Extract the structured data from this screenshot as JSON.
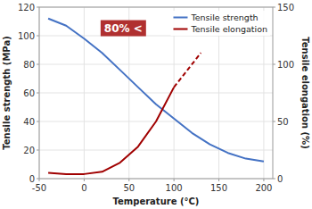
{
  "chart_data": {
    "type": "line",
    "xlabel": "Temperature (°C)",
    "ylabel": "Tensile strength (MPa)",
    "y2label": "Tensile elongation (%)",
    "xlim": [
      -50,
      210
    ],
    "xticks": [
      -50,
      0,
      50,
      100,
      150,
      200
    ],
    "ylim": [
      0,
      120
    ],
    "yticks": [
      0,
      20,
      40,
      60,
      80,
      100,
      120
    ],
    "y2lim": [
      0,
      150
    ],
    "y2ticks": [
      0,
      50,
      100,
      150
    ],
    "grid": true,
    "legend": "upper right",
    "annotations": [
      {
        "text": "80% <"
      }
    ],
    "series": [
      {
        "name": "Tensile strength",
        "color": "#4472c4",
        "x": [
          -40,
          -20,
          0,
          20,
          40,
          60,
          80,
          100,
          120,
          140,
          160,
          180,
          200
        ],
        "values": [
          112,
          107,
          98,
          88,
          76,
          64,
          52,
          42,
          32,
          24,
          18,
          14,
          12
        ]
      },
      {
        "name": "Tensile elongation",
        "color": "#a00000",
        "axis": "y2",
        "x": [
          -40,
          -20,
          0,
          20,
          40,
          60,
          80,
          100
        ],
        "values": [
          5,
          4,
          4,
          6,
          14,
          28,
          50,
          80
        ]
      },
      {
        "color": "#a00000",
        "axis": "y2",
        "line_style": "dashed",
        "x": [
          100,
          115,
          130
        ],
        "values": [
          80,
          95,
          110
        ]
      }
    ]
  }
}
